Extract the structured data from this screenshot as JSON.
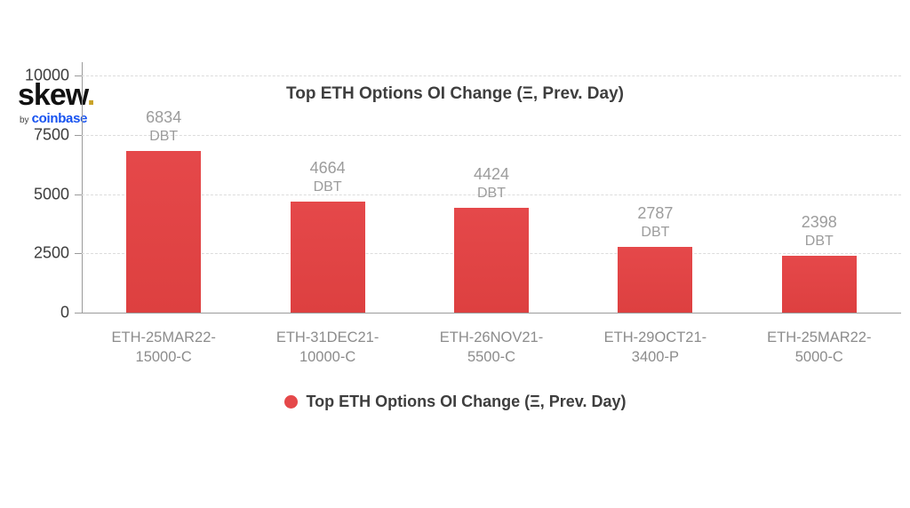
{
  "logo": {
    "brand": "skew",
    "dot": ".",
    "byline_prefix": "by",
    "byline_brand": "coinbase"
  },
  "chart_data": {
    "type": "bar",
    "title": "Top ETH Options OI Change (Ξ, Prev. Day)",
    "categories": [
      "ETH-25MAR22-15000-C",
      "ETH-31DEC21-10000-C",
      "ETH-26NOV21-5500-C",
      "ETH-29OCT21-3400-P",
      "ETH-25MAR22-5000-C"
    ],
    "category_lines": [
      [
        "ETH-25MAR22-",
        "15000-C"
      ],
      [
        "ETH-31DEC21-",
        "10000-C"
      ],
      [
        "ETH-26NOV21-",
        "5500-C"
      ],
      [
        "ETH-29OCT21-",
        "3400-P"
      ],
      [
        "ETH-25MAR22-",
        "5000-C"
      ]
    ],
    "values": [
      6834,
      4664,
      4424,
      2787,
      2398
    ],
    "value_unit": "DBT",
    "xlabel": "",
    "ylabel": "",
    "ylim": [
      0,
      10000
    ],
    "yticks": [
      0,
      2500,
      5000,
      7500,
      10000
    ],
    "ytick_labels": [
      "0",
      "2500",
      "5000",
      "7500",
      "10000"
    ],
    "grid": "dashed-horizontal",
    "bar_color": "#e5484a",
    "legend": {
      "position": "bottom",
      "marker_color": "#e5484a",
      "label": "Top ETH Options OI Change (Ξ, Prev. Day)"
    }
  }
}
